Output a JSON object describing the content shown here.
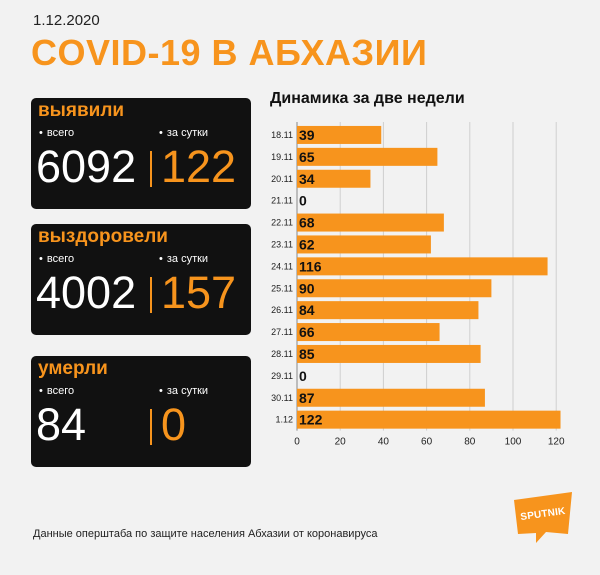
{
  "header": {
    "date": "1.12.2020",
    "title": "COVID-19 В АБХАЗИИ"
  },
  "cards": {
    "detected": {
      "title": "выявили",
      "total_label": "всего",
      "day_label": "за сутки",
      "total": "6092",
      "day": "122"
    },
    "recovered": {
      "title": "выздоровели",
      "total_label": "всего",
      "day_label": "за сутки",
      "total": "4002",
      "day": "157"
    },
    "died": {
      "title": "умерли",
      "total_label": "всего",
      "day_label": "за сутки",
      "total": "84",
      "day": "0"
    }
  },
  "chart_data": {
    "type": "bar",
    "orientation": "horizontal",
    "title": "Динамика за две недели",
    "categories": [
      "18.11",
      "19.11",
      "20.11",
      "21.11",
      "22.11",
      "23.11",
      "24.11",
      "25.11",
      "26.11",
      "27.11",
      "28.11",
      "29.11",
      "30.11",
      "1.12"
    ],
    "values": [
      39,
      65,
      34,
      0,
      68,
      62,
      116,
      90,
      84,
      66,
      85,
      0,
      87,
      122
    ],
    "xlim": [
      0,
      125
    ],
    "xticks": [
      0,
      20,
      40,
      60,
      80,
      100,
      120
    ],
    "grid": true,
    "bar_color": "#f7941d"
  },
  "footer": {
    "source": "Данные оперштаба по защите населения Абхазии от коронавируса",
    "logo_text": "SPUTNIK"
  },
  "colors": {
    "accent": "#f7941d",
    "card_bg": "#111111",
    "background": "#f2f2f2"
  }
}
